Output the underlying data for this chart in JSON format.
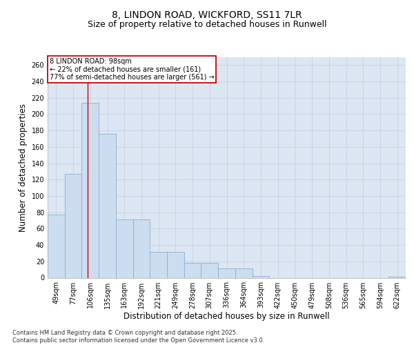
{
  "title1": "8, LINDON ROAD, WICKFORD, SS11 7LR",
  "title2": "Size of property relative to detached houses in Runwell",
  "xlabel": "Distribution of detached houses by size in Runwell",
  "ylabel": "Number of detached properties",
  "categories": [
    "49sqm",
    "77sqm",
    "106sqm",
    "135sqm",
    "163sqm",
    "192sqm",
    "221sqm",
    "249sqm",
    "278sqm",
    "307sqm",
    "336sqm",
    "364sqm",
    "393sqm",
    "422sqm",
    "450sqm",
    "479sqm",
    "508sqm",
    "536sqm",
    "565sqm",
    "594sqm",
    "622sqm"
  ],
  "values": [
    77,
    127,
    214,
    176,
    71,
    71,
    32,
    32,
    18,
    18,
    11,
    11,
    2,
    0,
    0,
    0,
    0,
    0,
    0,
    0,
    1
  ],
  "bar_color": "#ccddf0",
  "bar_edge_color": "#8aafd0",
  "grid_color": "#c8d4e8",
  "background_color": "#dde6f3",
  "annotation_box_text": "8 LINDON ROAD: 98sqm\n← 22% of detached houses are smaller (161)\n77% of semi-detached houses are larger (561) →",
  "annotation_box_color": "#ffffff",
  "annotation_box_border": "#cc0000",
  "vline_color": "#cc0000",
  "vline_x": 1.85,
  "ylim": [
    0,
    270
  ],
  "yticks": [
    0,
    20,
    40,
    60,
    80,
    100,
    120,
    140,
    160,
    180,
    200,
    220,
    240,
    260
  ],
  "footer_text": "Contains HM Land Registry data © Crown copyright and database right 2025.\nContains public sector information licensed under the Open Government Licence v3.0.",
  "title_fontsize": 10,
  "subtitle_fontsize": 9,
  "tick_fontsize": 7,
  "label_fontsize": 8.5,
  "footer_fontsize": 6
}
